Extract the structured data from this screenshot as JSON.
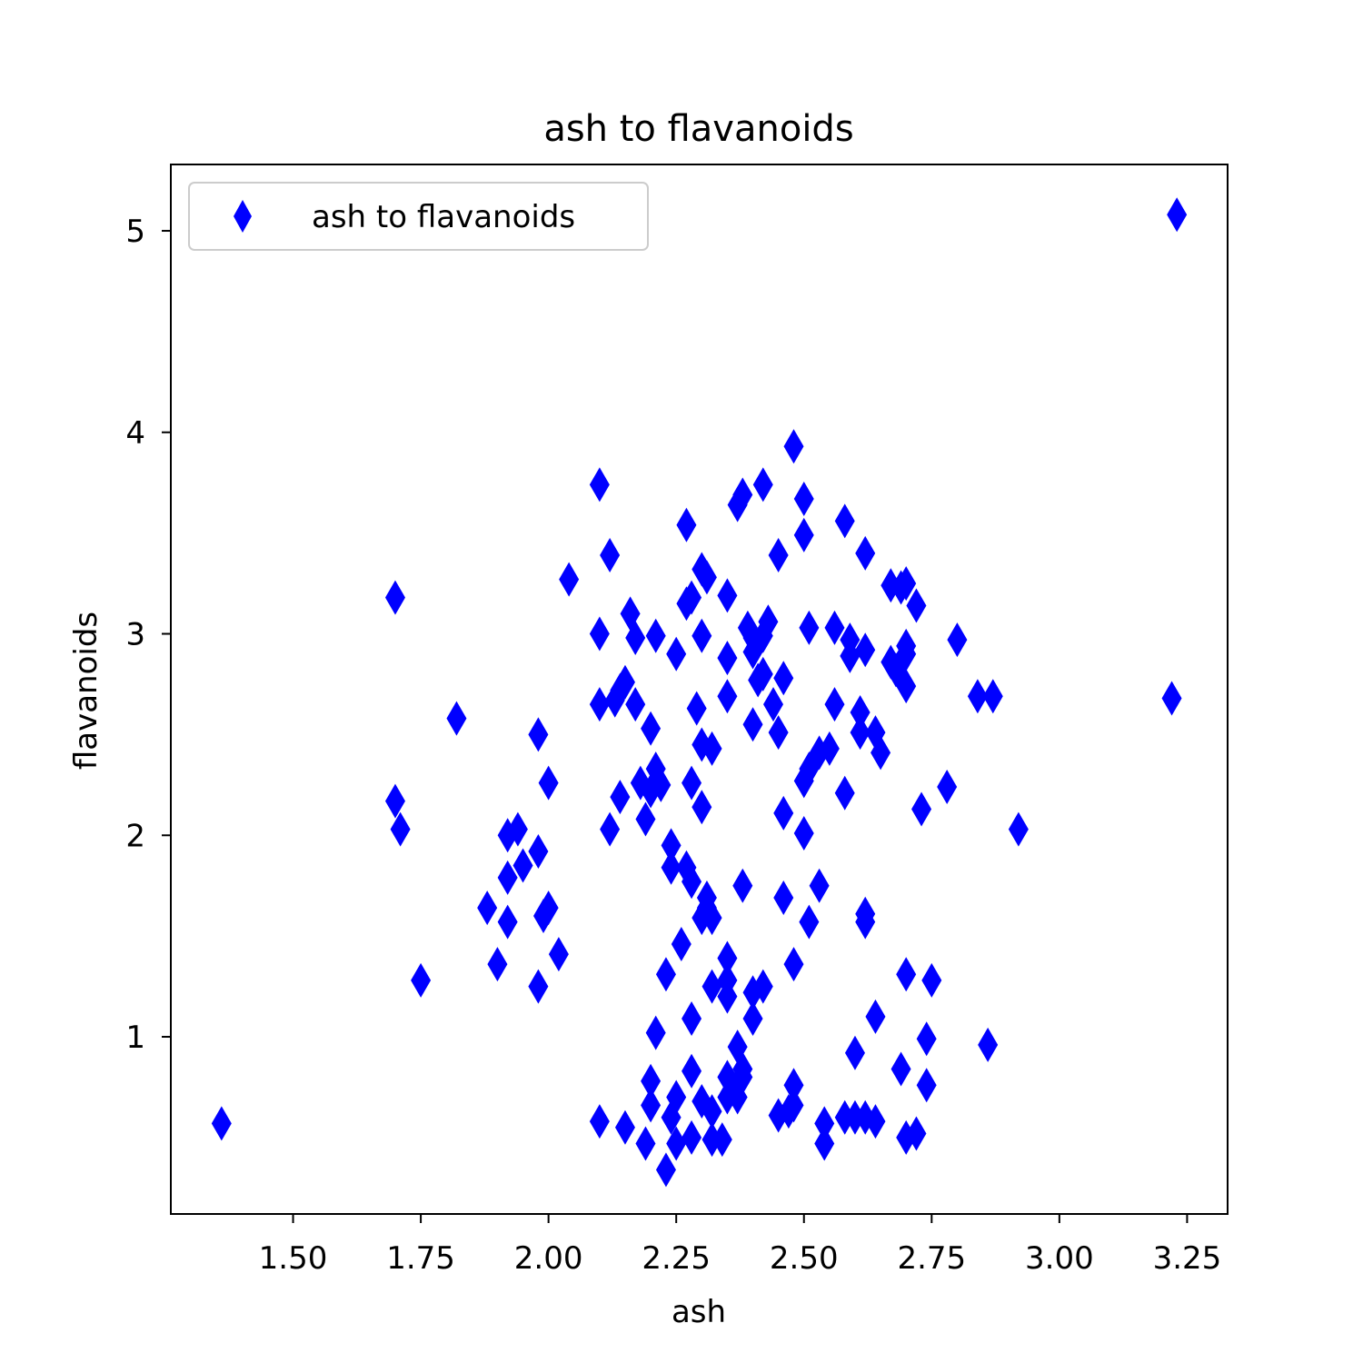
{
  "chart_data": {
    "type": "scatter",
    "title": "ash to flavanoids",
    "xlabel": "ash",
    "ylabel": "flavanoids",
    "xlim": [
      1.2607,
      3.3293
    ],
    "ylim": [
      0.1207,
      5.3293
    ],
    "x_ticks": [
      {
        "value": 1.5,
        "label": "1.50"
      },
      {
        "value": 1.75,
        "label": "1.75"
      },
      {
        "value": 2.0,
        "label": "2.00"
      },
      {
        "value": 2.25,
        "label": "2.25"
      },
      {
        "value": 2.5,
        "label": "2.50"
      },
      {
        "value": 2.75,
        "label": "2.75"
      },
      {
        "value": 3.0,
        "label": "3.00"
      },
      {
        "value": 3.25,
        "label": "3.25"
      }
    ],
    "y_ticks": [
      {
        "value": 1,
        "label": "1"
      },
      {
        "value": 2,
        "label": "2"
      },
      {
        "value": 3,
        "label": "3"
      },
      {
        "value": 4,
        "label": "4"
      },
      {
        "value": 5,
        "label": "5"
      }
    ],
    "grid": false,
    "legend": {
      "position": "top-left"
    },
    "series": [
      {
        "name": "ash to flavanoids",
        "color": "#0000ff",
        "marker": "thin-diamond",
        "points": [
          [
            1.36,
            0.57
          ],
          [
            1.7,
            3.18
          ],
          [
            1.7,
            2.17
          ],
          [
            1.71,
            2.03
          ],
          [
            1.75,
            1.28
          ],
          [
            1.82,
            2.58
          ],
          [
            1.88,
            1.64
          ],
          [
            1.9,
            1.36
          ],
          [
            1.92,
            2.0
          ],
          [
            1.92,
            1.79
          ],
          [
            1.92,
            1.57
          ],
          [
            1.94,
            2.03
          ],
          [
            1.95,
            1.85
          ],
          [
            1.98,
            2.5
          ],
          [
            1.98,
            1.92
          ],
          [
            1.98,
            1.25
          ],
          [
            1.99,
            1.6
          ],
          [
            2.0,
            2.26
          ],
          [
            2.0,
            1.64
          ],
          [
            2.02,
            1.41
          ],
          [
            2.04,
            3.27
          ],
          [
            2.1,
            3.74
          ],
          [
            2.1,
            3.0
          ],
          [
            2.1,
            2.65
          ],
          [
            2.1,
            0.58
          ],
          [
            2.12,
            3.39
          ],
          [
            2.12,
            2.03
          ],
          [
            2.13,
            2.67
          ],
          [
            2.14,
            2.72
          ],
          [
            2.15,
            2.76
          ],
          [
            2.14,
            2.19
          ],
          [
            2.15,
            0.55
          ],
          [
            2.16,
            3.1
          ],
          [
            2.17,
            2.98
          ],
          [
            2.17,
            2.65
          ],
          [
            2.18,
            2.26
          ],
          [
            2.19,
            2.08
          ],
          [
            2.19,
            0.47
          ],
          [
            2.2,
            2.53
          ],
          [
            2.2,
            2.22
          ],
          [
            2.2,
            0.78
          ],
          [
            2.2,
            0.66
          ],
          [
            2.21,
            2.99
          ],
          [
            2.21,
            2.33
          ],
          [
            2.21,
            1.02
          ],
          [
            2.22,
            2.25
          ],
          [
            2.23,
            1.31
          ],
          [
            2.23,
            0.34
          ],
          [
            2.24,
            1.95
          ],
          [
            2.24,
            1.84
          ],
          [
            2.24,
            0.6
          ],
          [
            2.25,
            2.9
          ],
          [
            2.25,
            0.47
          ],
          [
            2.25,
            0.7
          ],
          [
            2.26,
            1.46
          ],
          [
            2.27,
            3.54
          ],
          [
            2.27,
            3.15
          ],
          [
            2.27,
            1.84
          ],
          [
            2.28,
            3.18
          ],
          [
            2.28,
            2.26
          ],
          [
            2.28,
            1.77
          ],
          [
            2.28,
            1.09
          ],
          [
            2.28,
            0.83
          ],
          [
            2.28,
            0.5
          ],
          [
            2.29,
            2.63
          ],
          [
            2.3,
            3.32
          ],
          [
            2.3,
            2.99
          ],
          [
            2.3,
            2.45
          ],
          [
            2.3,
            2.14
          ],
          [
            2.3,
            1.59
          ],
          [
            2.3,
            0.68
          ],
          [
            2.31,
            3.28
          ],
          [
            2.31,
            1.69
          ],
          [
            2.31,
            1.64
          ],
          [
            2.32,
            2.43
          ],
          [
            2.32,
            1.59
          ],
          [
            2.32,
            1.25
          ],
          [
            2.32,
            0.63
          ],
          [
            2.32,
            0.49
          ],
          [
            2.35,
            3.19
          ],
          [
            2.35,
            2.88
          ],
          [
            2.35,
            2.69
          ],
          [
            2.35,
            1.39
          ],
          [
            2.35,
            1.28
          ],
          [
            2.35,
            1.2
          ],
          [
            2.35,
            0.8
          ],
          [
            2.35,
            0.7
          ],
          [
            2.34,
            0.49
          ],
          [
            2.37,
            3.64
          ],
          [
            2.37,
            0.95
          ],
          [
            2.37,
            0.7
          ],
          [
            2.37,
            0.76
          ],
          [
            2.38,
            3.69
          ],
          [
            2.38,
            1.75
          ],
          [
            2.38,
            0.84
          ],
          [
            2.38,
            0.8
          ],
          [
            2.39,
            3.03
          ],
          [
            2.4,
            2.98
          ],
          [
            2.4,
            2.91
          ],
          [
            2.4,
            2.55
          ],
          [
            2.4,
            1.22
          ],
          [
            2.4,
            1.09
          ],
          [
            2.41,
            2.77
          ],
          [
            2.42,
            3.74
          ],
          [
            2.42,
            2.99
          ],
          [
            2.42,
            2.8
          ],
          [
            2.42,
            1.25
          ],
          [
            2.43,
            3.06
          ],
          [
            2.44,
            2.65
          ],
          [
            2.45,
            3.39
          ],
          [
            2.45,
            2.51
          ],
          [
            2.45,
            0.61
          ],
          [
            2.46,
            2.78
          ],
          [
            2.46,
            2.11
          ],
          [
            2.46,
            1.69
          ],
          [
            2.47,
            0.63
          ],
          [
            2.48,
            3.93
          ],
          [
            2.48,
            1.36
          ],
          [
            2.48,
            0.76
          ],
          [
            2.48,
            0.66
          ],
          [
            2.5,
            3.67
          ],
          [
            2.5,
            3.49
          ],
          [
            2.5,
            2.27
          ],
          [
            2.5,
            2.01
          ],
          [
            2.51,
            3.03
          ],
          [
            2.51,
            2.33
          ],
          [
            2.51,
            1.57
          ],
          [
            2.53,
            2.41
          ],
          [
            2.53,
            1.75
          ],
          [
            2.54,
            0.57
          ],
          [
            2.54,
            0.47
          ],
          [
            2.55,
            2.43
          ],
          [
            2.56,
            3.03
          ],
          [
            2.56,
            2.65
          ],
          [
            2.58,
            3.56
          ],
          [
            2.58,
            2.21
          ],
          [
            2.58,
            0.6
          ],
          [
            2.59,
            2.97
          ],
          [
            2.59,
            2.89
          ],
          [
            2.6,
            0.92
          ],
          [
            2.6,
            0.6
          ],
          [
            2.61,
            2.61
          ],
          [
            2.61,
            2.51
          ],
          [
            2.62,
            3.4
          ],
          [
            2.62,
            2.92
          ],
          [
            2.62,
            1.61
          ],
          [
            2.62,
            1.57
          ],
          [
            2.62,
            0.6
          ],
          [
            2.64,
            2.51
          ],
          [
            2.64,
            1.1
          ],
          [
            2.64,
            0.58
          ],
          [
            2.65,
            2.41
          ],
          [
            2.67,
            3.24
          ],
          [
            2.67,
            2.86
          ],
          [
            2.68,
            2.82
          ],
          [
            2.69,
            3.23
          ],
          [
            2.69,
            0.84
          ],
          [
            2.7,
            3.25
          ],
          [
            2.7,
            2.94
          ],
          [
            2.7,
            2.9
          ],
          [
            2.7,
            2.74
          ],
          [
            2.7,
            1.31
          ],
          [
            2.7,
            0.5
          ],
          [
            2.72,
            3.14
          ],
          [
            2.72,
            0.52
          ],
          [
            2.73,
            2.13
          ],
          [
            2.74,
            0.99
          ],
          [
            2.74,
            0.76
          ],
          [
            2.75,
            1.28
          ],
          [
            2.78,
            2.24
          ],
          [
            2.8,
            2.97
          ],
          [
            2.84,
            2.69
          ],
          [
            2.86,
            0.96
          ],
          [
            2.87,
            2.69
          ],
          [
            2.92,
            2.03
          ],
          [
            3.22,
            2.68
          ],
          [
            3.23,
            5.08
          ]
        ]
      }
    ]
  }
}
